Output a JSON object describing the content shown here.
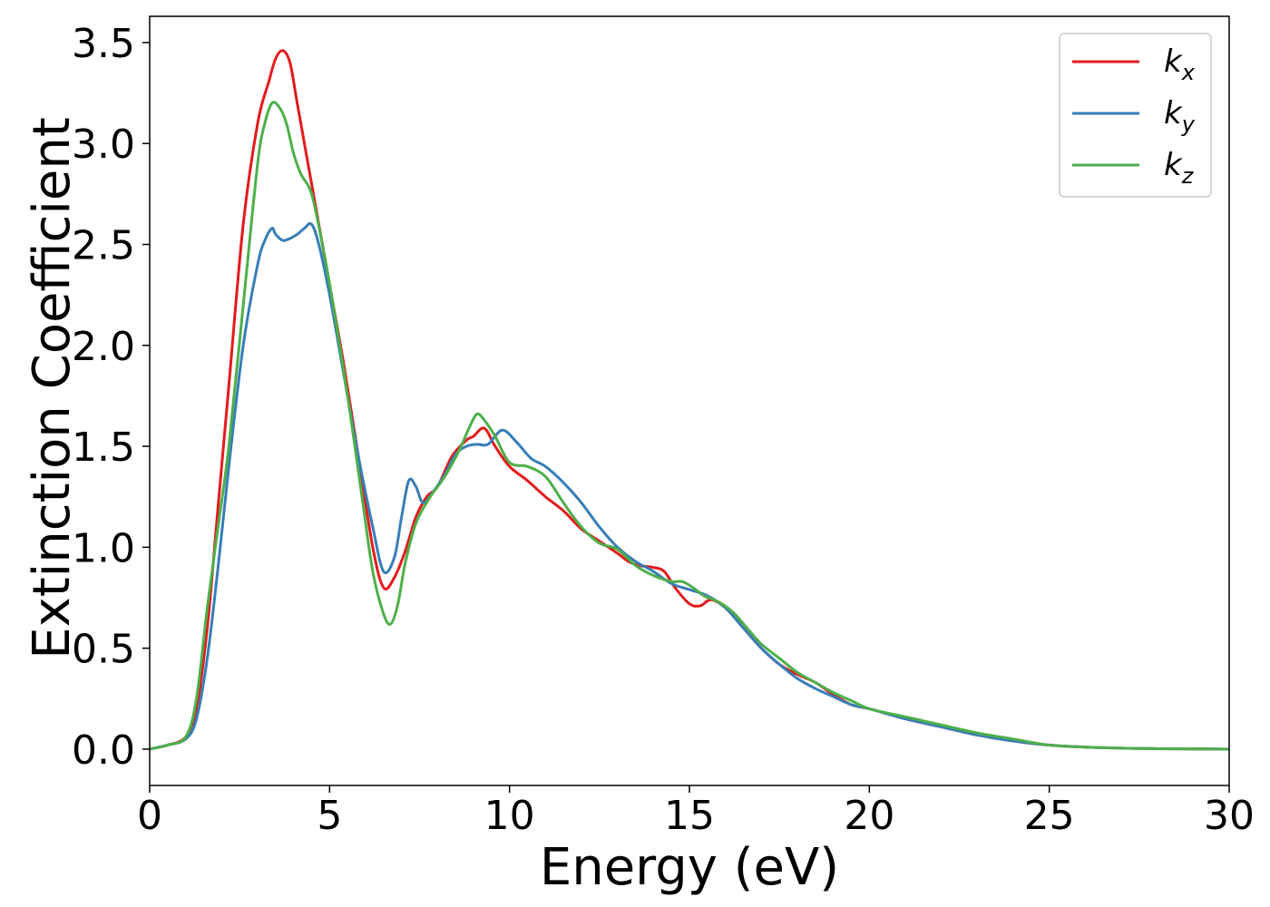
{
  "chart_data": {
    "type": "line",
    "title": "",
    "xlabel": "Energy (eV)",
    "ylabel": "Extinction Coefficient",
    "xlim": [
      0,
      30
    ],
    "ylim": [
      -0.18,
      3.63
    ],
    "xticks": [
      "0",
      "5",
      "10",
      "15",
      "20",
      "25",
      "30"
    ],
    "yticks": [
      "0.0",
      "0.5",
      "1.0",
      "1.5",
      "2.0",
      "2.5",
      "3.0",
      "3.5"
    ],
    "grid": false,
    "legend_position": "top-right",
    "series": [
      {
        "name": "kx",
        "label_main": "k",
        "label_sub": "x",
        "color": "#e41a1c",
        "x": [
          0,
          0.5,
          1.0,
          1.3,
          1.6,
          1.9,
          2.2,
          2.6,
          3.0,
          3.3,
          3.5,
          3.7,
          3.9,
          4.1,
          4.4,
          4.7,
          5.0,
          5.4,
          5.8,
          6.2,
          6.5,
          6.8,
          7.1,
          7.4,
          7.7,
          8.0,
          8.4,
          8.8,
          9.0,
          9.3,
          9.6,
          10.0,
          10.5,
          11.0,
          11.5,
          12.0,
          12.5,
          13.0,
          13.3,
          13.6,
          14.0,
          14.3,
          14.6,
          15.0,
          15.3,
          15.6,
          16.0,
          16.5,
          17.0,
          17.5,
          18.0,
          18.5,
          19.0,
          19.5,
          20.0,
          21.0,
          22.0,
          23.0,
          24.0,
          25.0,
          26.0,
          27.0,
          28.0,
          29.0,
          30.0
        ],
        "y": [
          0.0,
          0.02,
          0.06,
          0.2,
          0.6,
          1.2,
          1.8,
          2.6,
          3.1,
          3.3,
          3.42,
          3.46,
          3.4,
          3.2,
          2.9,
          2.6,
          2.3,
          1.9,
          1.45,
          1.0,
          0.8,
          0.85,
          0.98,
          1.15,
          1.25,
          1.3,
          1.45,
          1.53,
          1.55,
          1.59,
          1.5,
          1.4,
          1.33,
          1.25,
          1.18,
          1.09,
          1.03,
          0.97,
          0.93,
          0.91,
          0.9,
          0.88,
          0.8,
          0.72,
          0.71,
          0.74,
          0.7,
          0.6,
          0.5,
          0.42,
          0.37,
          0.33,
          0.27,
          0.22,
          0.2,
          0.15,
          0.11,
          0.07,
          0.04,
          0.02,
          0.01,
          0.005,
          0.002,
          0.001,
          0.0
        ]
      },
      {
        "name": "ky",
        "label_main": "k",
        "label_sub": "y",
        "color": "#377eb8",
        "x": [
          0,
          0.5,
          1.0,
          1.3,
          1.6,
          1.9,
          2.2,
          2.6,
          3.0,
          3.2,
          3.4,
          3.5,
          3.7,
          3.9,
          4.1,
          4.3,
          4.5,
          4.7,
          5.0,
          5.4,
          5.8,
          6.2,
          6.5,
          6.8,
          7.0,
          7.2,
          7.4,
          7.6,
          7.9,
          8.2,
          8.5,
          8.8,
          9.1,
          9.4,
          9.8,
          10.2,
          10.6,
          11.0,
          11.5,
          12.0,
          12.5,
          13.0,
          13.5,
          14.0,
          14.5,
          15.0,
          15.5,
          16.0,
          16.5,
          17.0,
          17.5,
          18.0,
          18.5,
          19.0,
          19.5,
          20.0,
          21.0,
          22.0,
          23.0,
          24.0,
          25.0,
          26.0,
          27.0,
          28.0,
          29.0,
          30.0
        ],
        "y": [
          0.0,
          0.02,
          0.05,
          0.15,
          0.45,
          0.9,
          1.4,
          2.0,
          2.4,
          2.52,
          2.58,
          2.55,
          2.52,
          2.53,
          2.55,
          2.58,
          2.6,
          2.5,
          2.25,
          1.85,
          1.45,
          1.1,
          0.88,
          0.95,
          1.15,
          1.33,
          1.3,
          1.22,
          1.28,
          1.36,
          1.46,
          1.5,
          1.51,
          1.51,
          1.58,
          1.52,
          1.44,
          1.4,
          1.32,
          1.22,
          1.1,
          1.0,
          0.93,
          0.88,
          0.82,
          0.79,
          0.76,
          0.7,
          0.6,
          0.5,
          0.42,
          0.35,
          0.3,
          0.26,
          0.22,
          0.2,
          0.15,
          0.11,
          0.07,
          0.04,
          0.02,
          0.01,
          0.005,
          0.002,
          0.001,
          0.0
        ]
      },
      {
        "name": "kz",
        "label_main": "k",
        "label_sub": "z",
        "color": "#4daf4a",
        "x": [
          0,
          0.5,
          1.0,
          1.3,
          1.6,
          1.9,
          2.2,
          2.6,
          3.0,
          3.2,
          3.4,
          3.6,
          3.8,
          4.0,
          4.2,
          4.5,
          4.8,
          5.1,
          5.5,
          5.9,
          6.2,
          6.5,
          6.7,
          6.9,
          7.1,
          7.4,
          7.8,
          8.2,
          8.6,
          8.9,
          9.1,
          9.3,
          9.6,
          10.0,
          10.5,
          11.0,
          11.5,
          12.0,
          12.5,
          13.0,
          13.5,
          14.0,
          14.5,
          14.8,
          15.1,
          15.4,
          15.8,
          16.2,
          16.6,
          17.0,
          17.5,
          18.0,
          18.5,
          19.0,
          19.5,
          20.0,
          21.0,
          22.0,
          23.0,
          24.0,
          25.0,
          26.0,
          27.0,
          28.0,
          29.0,
          30.0
        ],
        "y": [
          0.0,
          0.02,
          0.06,
          0.25,
          0.7,
          1.1,
          1.5,
          2.2,
          2.9,
          3.1,
          3.2,
          3.18,
          3.1,
          2.95,
          2.85,
          2.75,
          2.5,
          2.2,
          1.75,
          1.25,
          0.88,
          0.67,
          0.62,
          0.72,
          0.92,
          1.12,
          1.25,
          1.35,
          1.48,
          1.6,
          1.66,
          1.63,
          1.55,
          1.42,
          1.4,
          1.35,
          1.22,
          1.1,
          1.02,
          0.99,
          0.91,
          0.86,
          0.83,
          0.83,
          0.8,
          0.76,
          0.73,
          0.68,
          0.6,
          0.52,
          0.45,
          0.38,
          0.33,
          0.28,
          0.24,
          0.2,
          0.16,
          0.12,
          0.08,
          0.05,
          0.02,
          0.01,
          0.005,
          0.002,
          0.001,
          0.0
        ]
      }
    ]
  }
}
